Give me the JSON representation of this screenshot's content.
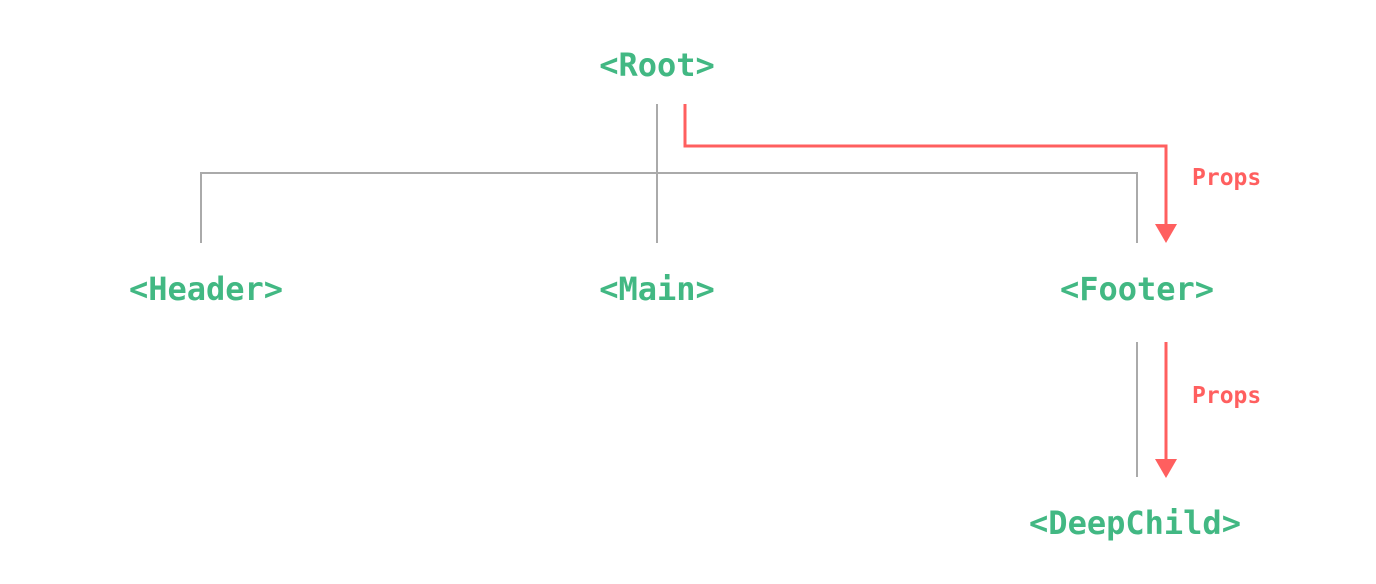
{
  "colors": {
    "node": "#42b883",
    "props": "#ff5f5f",
    "tree_line": "#aaaaaa"
  },
  "nodes": {
    "root": "<Root>",
    "header": "<Header>",
    "main": "<Main>",
    "footer": "<Footer>",
    "deepchild": "<DeepChild>"
  },
  "edges": [
    {
      "from": "root",
      "to": "header"
    },
    {
      "from": "root",
      "to": "main"
    },
    {
      "from": "root",
      "to": "footer"
    },
    {
      "from": "footer",
      "to": "deepchild"
    }
  ],
  "props_flows": [
    {
      "from": "root",
      "to": "footer",
      "label": "Props"
    },
    {
      "from": "footer",
      "to": "deepchild",
      "label": "Props"
    }
  ]
}
